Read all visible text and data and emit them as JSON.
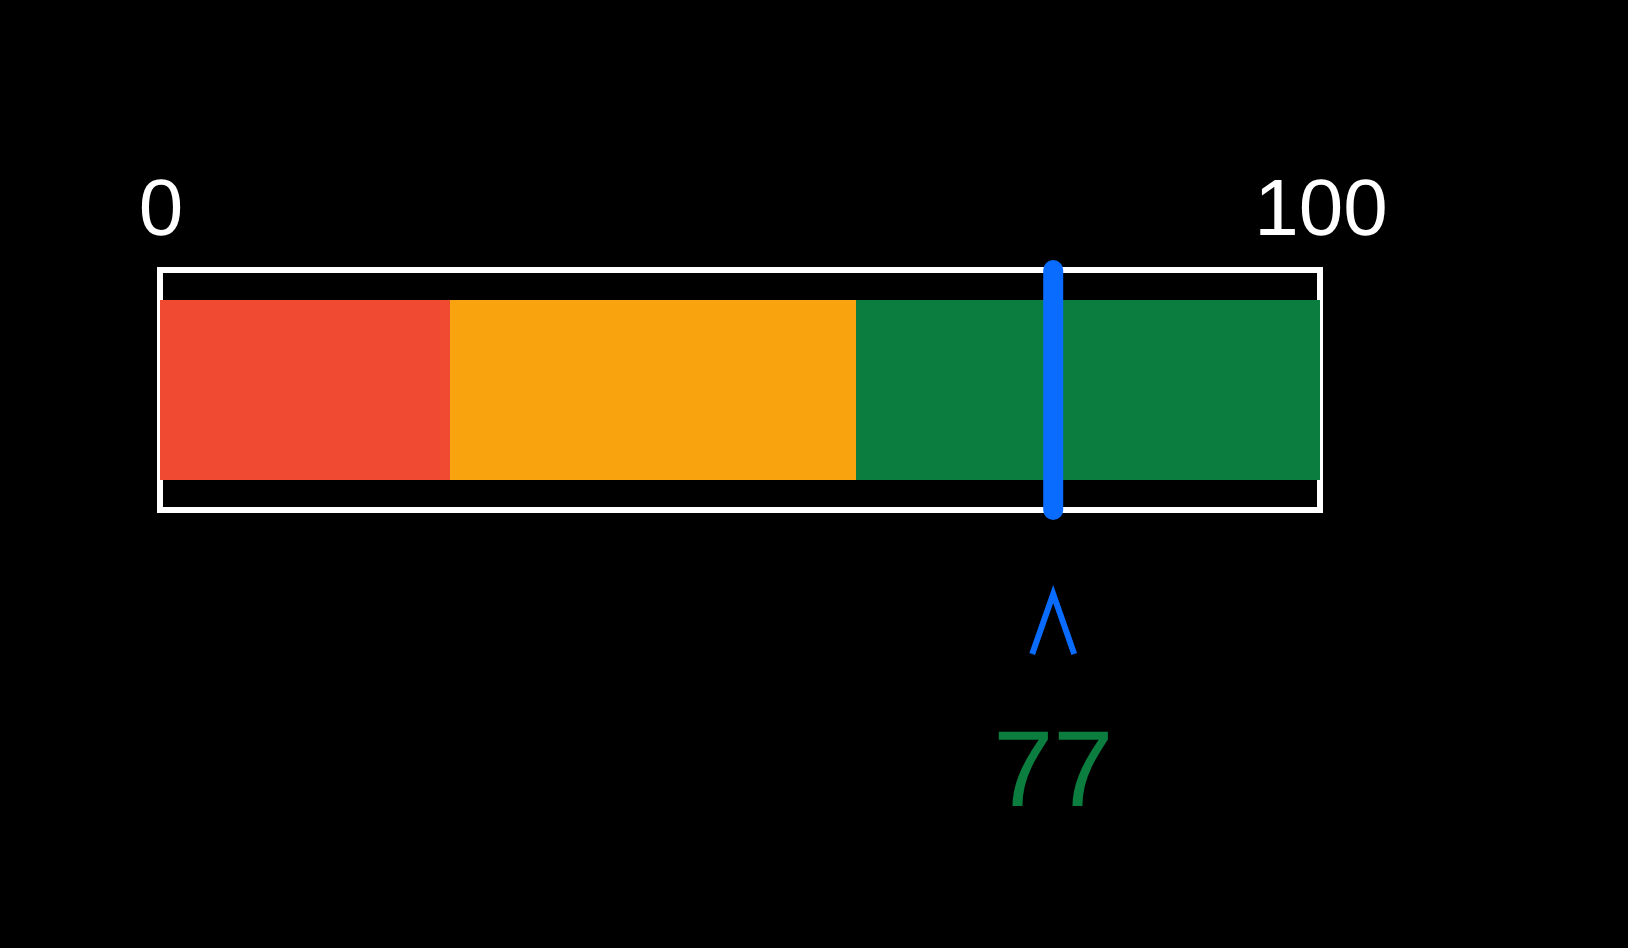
{
  "chart_data": {
    "type": "bar",
    "orientation": "horizontal",
    "stacked": true,
    "categories": [
      null
    ],
    "series": [
      {
        "color": "#f04a32",
        "values": [
          25
        ]
      },
      {
        "color": "#f9a30f",
        "values": [
          35
        ]
      },
      {
        "color": "#0b7d3e",
        "values": [
          40
        ]
      }
    ],
    "xlim": [
      0,
      100
    ],
    "xticks": [
      0,
      100
    ],
    "ref_lines": [
      {
        "axis": "x",
        "value": 77,
        "label": "77",
        "color": "#0a6cff"
      }
    ]
  }
}
